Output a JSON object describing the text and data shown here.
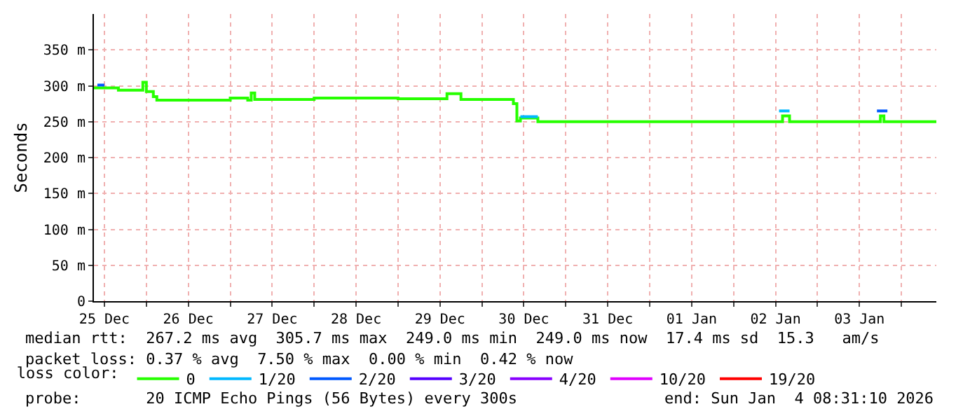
{
  "chart_data": {
    "type": "step",
    "ylabel": "Seconds",
    "xlim": [
      "2025-12-24T21:00",
      "2026-01-03T22:00"
    ],
    "xticks": [
      {
        "value": "2025-12-25",
        "label": "25 Dec"
      },
      {
        "value": "2025-12-25T12:00",
        "label": null
      },
      {
        "value": "2025-12-26",
        "label": "26 Dec"
      },
      {
        "value": "2025-12-26T12:00",
        "label": null
      },
      {
        "value": "2025-12-27",
        "label": "27 Dec"
      },
      {
        "value": "2025-12-27T12:00",
        "label": null
      },
      {
        "value": "2025-12-28",
        "label": "28 Dec"
      },
      {
        "value": "2025-12-28T12:00",
        "label": null
      },
      {
        "value": "2025-12-29",
        "label": "29 Dec"
      },
      {
        "value": "2025-12-29T12:00",
        "label": null
      },
      {
        "value": "2025-12-30",
        "label": "30 Dec"
      },
      {
        "value": "2025-12-30T12:00",
        "label": null
      },
      {
        "value": "2025-12-31",
        "label": "31 Dec"
      },
      {
        "value": "2025-12-31T12:00",
        "label": null
      },
      {
        "value": "2026-01-01",
        "label": "01 Jan"
      },
      {
        "value": "2026-01-01T12:00",
        "label": null
      },
      {
        "value": "2026-01-02",
        "label": "02 Jan"
      },
      {
        "value": "2026-01-02T12:00",
        "label": null
      },
      {
        "value": "2026-01-03",
        "label": "03 Jan"
      },
      {
        "value": "2026-01-03T12:00",
        "label": null
      }
    ],
    "ylim": [
      0,
      400
    ],
    "yticks": [
      0,
      {
        "value": 50,
        "label": "50 m"
      },
      {
        "value": 100,
        "label": "100 m"
      },
      {
        "value": 150,
        "label": "150 m"
      },
      {
        "value": 200,
        "label": "200 m"
      },
      {
        "value": 250,
        "label": "250 m"
      },
      {
        "value": 300,
        "label": "300 m"
      },
      {
        "value": 350,
        "label": "350 m"
      }
    ],
    "grid": true,
    "legend": "bottom",
    "legend_title": "loss color:",
    "line_style": "solid",
    "marker": "none",
    "series": [
      {
        "name": "0",
        "color": "#26ff00",
        "x": [
          "2025-12-24T21:00",
          "2025-12-25T04:00",
          "2025-12-25T11:00",
          "2025-12-25T12:00",
          "2025-12-25T14:00",
          "2025-12-25T15:00",
          "2025-12-26T12:00",
          "2025-12-26T17:00",
          "2025-12-26T18:00",
          "2025-12-26T19:00",
          "2025-12-27T12:00",
          "2025-12-28T12:00",
          "2025-12-29T02:00",
          "2025-12-29T06:00",
          "2025-12-29T21:00",
          "2025-12-29T22:00",
          "2025-12-29T23:00",
          "2025-12-30T04:00",
          "2026-01-02T02:00",
          "2026-01-02T04:00",
          "2026-01-03T06:00",
          "2026-01-03T07:00",
          "2026-01-03T22:00"
        ],
        "values": [
          297,
          294,
          305,
          292,
          285,
          280,
          283,
          280,
          290,
          281,
          283,
          282,
          289,
          281,
          275,
          251,
          255,
          250,
          258,
          250,
          258,
          250,
          250
        ]
      },
      {
        "name": "1/20",
        "color": "#00b8ff",
        "x": [
          "2025-12-29T23:00",
          "2025-12-30T04:00",
          "2025-12-30T05:00",
          "2026-01-02T01:00",
          "2026-01-02T04:00"
        ],
        "values": [
          257,
          257,
          null,
          265,
          265
        ]
      },
      {
        "name": "2/20",
        "color": "#0059ff",
        "x": [
          "2025-12-24T22:00",
          "2025-12-25T00:00",
          "2025-12-25T01:00",
          "2026-01-03T05:00",
          "2026-01-03T08:00"
        ],
        "values": [
          301,
          301,
          null,
          265,
          265
        ]
      },
      {
        "name": "3/20",
        "color": "#5500ff"
      },
      {
        "name": "4/20",
        "color": "#8800ff"
      },
      {
        "name": "10/20",
        "color": "#e000ff"
      },
      {
        "name": "19/20",
        "color": "#ff0000"
      }
    ],
    "annotations": [
      "median rtt:  267.2 ms avg  305.7 ms max  249.0 ms min  249.0 ms now  17.4 ms sd  15.3   am/s",
      "packet loss: 0.37 % avg  7.50 % max  0.00 % min  0.42 % now",
      "probe:       20 ICMP Echo Pings (56 Bytes) every 300s",
      "end: Sun Jan  4 08:31:10 2026"
    ]
  }
}
